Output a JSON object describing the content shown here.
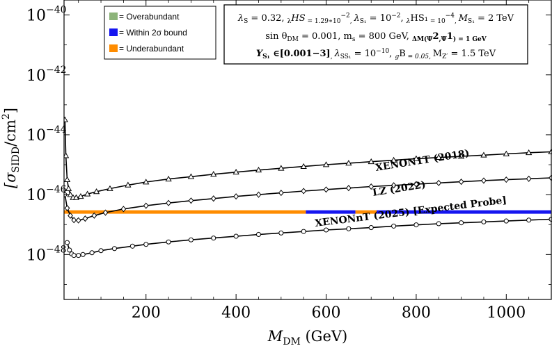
{
  "chart_data": {
    "type": "scatter",
    "xlabel": {
      "main": "M",
      "sub": "DM",
      "unit": " (GeV)"
    },
    "ylabel": {
      "main": "[σ",
      "sub": "SIDD",
      "unit": "/cm",
      "sup": "2",
      "close": "]"
    },
    "xlim": [
      18,
      1100
    ],
    "ylim_log10": [
      -49.5,
      -39.5
    ],
    "x_ticks": [
      200,
      400,
      600,
      800,
      1000
    ],
    "y_ticks": [
      {
        "exp": -40,
        "base": "10",
        "label": "−40"
      },
      {
        "exp": -42,
        "base": "10",
        "label": "−42"
      },
      {
        "exp": -44,
        "base": "10",
        "label": "−44"
      },
      {
        "exp": -46,
        "base": "10",
        "label": "−46"
      },
      {
        "exp": -48,
        "base": "10",
        "label": "−48"
      }
    ],
    "legend": {
      "placement": "top-left",
      "items": [
        {
          "label": "= Overabundant",
          "color": "#8db47a"
        },
        {
          "label": "= Within 2σ bound",
          "color": "#1515f0"
        },
        {
          "label": "= Underabundant",
          "color": "#ff8c00"
        }
      ]
    },
    "params": {
      "line1": [
        "λ",
        "S",
        " = 0.32, ",
        "λ",
        "HS",
        " = 1.29∗10",
        "−2",
        ", ",
        "λ",
        "S₁",
        " = 10",
        "−2",
        ", ",
        "λ",
        "HS₁",
        " = 10",
        "−4",
        ", ",
        "M",
        "S₁",
        " = 2 TeV"
      ],
      "line2": [
        "sin θ",
        "DM",
        " = 0.001,   m",
        "s",
        " = 800 GeV, ",
        "ΔM(Ψ",
        "2",
        ",Ψ",
        "1",
        ") = 1 GeV"
      ],
      "line3": [
        "Y",
        "S₁",
        " ∈[0.001−3]",
        ", ",
        "λ",
        "SS₁",
        " = 10",
        "−10",
        ", ",
        "g",
        "B",
        " = 0.05, ",
        "M",
        "Z′",
        " = 1.5 TeV"
      ]
    },
    "series": [
      {
        "name": "XENON1T (2018)",
        "marker": "triangle",
        "points": [
          [
            20,
            -43.5
          ],
          [
            22,
            -44.7
          ],
          [
            25,
            -45.5
          ],
          [
            28,
            -45.8
          ],
          [
            32,
            -46.0
          ],
          [
            38,
            -46.1
          ],
          [
            45,
            -46.1
          ],
          [
            55,
            -46.06
          ],
          [
            70,
            -45.98
          ],
          [
            90,
            -45.9
          ],
          [
            120,
            -45.8
          ],
          [
            160,
            -45.68
          ],
          [
            200,
            -45.58
          ],
          [
            250,
            -45.48
          ],
          [
            300,
            -45.4
          ],
          [
            350,
            -45.32
          ],
          [
            400,
            -45.25
          ],
          [
            450,
            -45.18
          ],
          [
            500,
            -45.12
          ],
          [
            550,
            -45.06
          ],
          [
            600,
            -45.0
          ],
          [
            650,
            -44.95
          ],
          [
            700,
            -44.9
          ],
          [
            750,
            -44.85
          ],
          [
            800,
            -44.8
          ],
          [
            850,
            -44.76
          ],
          [
            900,
            -44.72
          ],
          [
            950,
            -44.68
          ],
          [
            1000,
            -44.64
          ],
          [
            1050,
            -44.6
          ],
          [
            1100,
            -44.57
          ]
        ]
      },
      {
        "name": "LZ (2022)",
        "marker": "diamond",
        "points": [
          [
            20,
            -46.0
          ],
          [
            25,
            -46.45
          ],
          [
            32,
            -46.7
          ],
          [
            40,
            -46.85
          ],
          [
            50,
            -46.86
          ],
          [
            65,
            -46.8
          ],
          [
            85,
            -46.7
          ],
          [
            110,
            -46.6
          ],
          [
            150,
            -46.48
          ],
          [
            200,
            -46.37
          ],
          [
            250,
            -46.28
          ],
          [
            300,
            -46.2
          ],
          [
            350,
            -46.13
          ],
          [
            400,
            -46.06
          ],
          [
            450,
            -46.0
          ],
          [
            500,
            -45.94
          ],
          [
            550,
            -45.88
          ],
          [
            600,
            -45.83
          ],
          [
            650,
            -45.78
          ],
          [
            700,
            -45.73
          ],
          [
            750,
            -45.69
          ],
          [
            800,
            -45.65
          ],
          [
            850,
            -45.61
          ],
          [
            900,
            -45.57
          ],
          [
            950,
            -45.53
          ],
          [
            1000,
            -45.5
          ],
          [
            1050,
            -45.47
          ],
          [
            1100,
            -45.44
          ]
        ]
      },
      {
        "name": "XENONnT (2025) [Expected Probe]",
        "marker": "circle",
        "points": [
          [
            25,
            -47.6
          ],
          [
            30,
            -47.85
          ],
          [
            35,
            -47.98
          ],
          [
            40,
            -48.03
          ],
          [
            50,
            -48.03
          ],
          [
            60,
            -48.0
          ],
          [
            80,
            -47.94
          ],
          [
            100,
            -47.87
          ],
          [
            130,
            -47.8
          ],
          [
            170,
            -47.72
          ],
          [
            200,
            -47.66
          ],
          [
            250,
            -47.58
          ],
          [
            300,
            -47.51
          ],
          [
            350,
            -47.45
          ],
          [
            400,
            -47.39
          ],
          [
            450,
            -47.33
          ],
          [
            500,
            -47.28
          ],
          [
            550,
            -47.23
          ],
          [
            600,
            -47.18
          ],
          [
            650,
            -47.14
          ],
          [
            700,
            -47.1
          ],
          [
            750,
            -47.05
          ],
          [
            800,
            -47.01
          ],
          [
            850,
            -46.97
          ],
          [
            900,
            -46.94
          ],
          [
            950,
            -46.91
          ],
          [
            1000,
            -46.88
          ],
          [
            1050,
            -46.85
          ],
          [
            1100,
            -46.82
          ]
        ]
      }
    ],
    "scan_band": {
      "log10_sigma": -46.58,
      "segments": [
        {
          "x": [
            18,
            555
          ],
          "color": "#ff8c00"
        },
        {
          "x": [
            555,
            665
          ],
          "color": "#1515f0"
        },
        {
          "x": [
            665,
            712
          ],
          "color": "#ff8c00"
        },
        {
          "x": [
            712,
            745
          ],
          "color": "#1515f0"
        },
        {
          "x": [
            745,
            1100
          ],
          "color": "#1515f0"
        }
      ]
    }
  }
}
